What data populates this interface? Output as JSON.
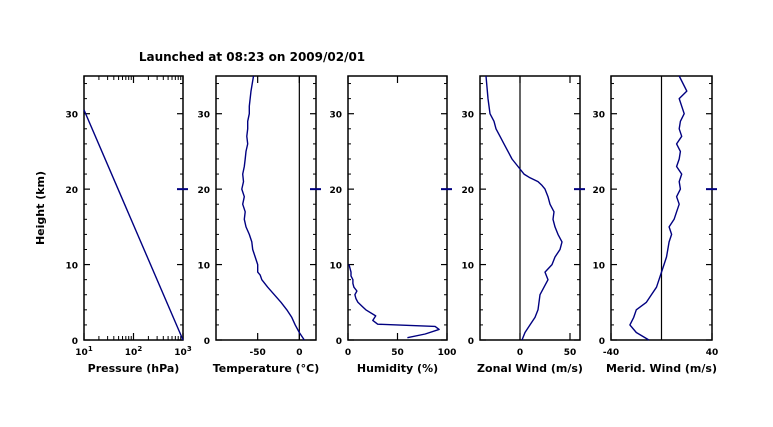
{
  "title": "Launched at 08:23 on 2009/02/01",
  "colors": {
    "frame": "#000000",
    "profile": "#000080",
    "tick": "#000000",
    "bg": "#ffffff"
  },
  "shared_ylabel": "Height (km)",
  "chart_data": [
    {
      "type": "line",
      "xlabel": "Pressure (hPa)",
      "ylabel": "Height (km)",
      "xscale": "log",
      "xlim": [
        10,
        1000
      ],
      "ylim": [
        0,
        35
      ],
      "xticks": [
        {
          "v": 10,
          "base": "10",
          "exp": "1"
        },
        {
          "v": 100,
          "base": "10",
          "exp": "2"
        },
        {
          "v": 1000,
          "base": "10",
          "exp": "3"
        }
      ],
      "yticks": [
        0,
        10,
        20,
        30
      ],
      "zero_line": null,
      "series": [
        {
          "x": [
            1000,
            10
          ],
          "y": [
            0,
            30.5
          ]
        }
      ]
    },
    {
      "type": "line",
      "xlabel": "Temperature (°C)",
      "xlim": [
        -100,
        20
      ],
      "ylim": [
        0,
        35
      ],
      "xticks": [
        -50,
        0
      ],
      "yticks": [
        0,
        10,
        20,
        30
      ],
      "zero_line": 0,
      "series": [
        {
          "x": [
            6,
            0,
            -5,
            -9,
            -15,
            -22,
            -30,
            -38,
            -45,
            -47,
            -50,
            -50,
            -53,
            -56,
            -57,
            -60,
            -64,
            -66,
            -65,
            -68,
            -66,
            -69,
            -67,
            -68,
            -66,
            -65,
            -64,
            -62,
            -63,
            -62,
            -62,
            -60,
            -60,
            -58,
            -55
          ],
          "y": [
            0,
            1,
            2,
            3,
            4,
            5,
            6,
            7,
            8,
            8.6,
            9,
            10,
            11,
            12,
            13,
            14,
            15,
            16,
            17,
            18,
            19,
            20,
            21,
            22,
            23,
            24,
            25,
            26,
            27,
            28,
            29,
            30,
            31,
            33,
            35
          ]
        }
      ]
    },
    {
      "type": "line",
      "xlabel": "Humidity (%)",
      "xlim": [
        0,
        100
      ],
      "ylim": [
        0,
        35
      ],
      "xticks": [
        0,
        50,
        100
      ],
      "yticks": [
        0,
        10,
        20,
        30
      ],
      "zero_line": null,
      "series": [
        {
          "x": [
            60,
            78,
            92,
            88,
            30,
            25,
            28,
            18,
            14,
            10,
            8,
            7,
            9,
            6,
            5,
            5,
            3,
            3,
            2,
            1
          ],
          "y": [
            0.3,
            0.8,
            1.4,
            1.8,
            2.1,
            2.6,
            3.2,
            4.0,
            4.5,
            5.0,
            5.5,
            6.0,
            6.5,
            7.0,
            7.5,
            8.0,
            8.5,
            9.0,
            9.5,
            10.0
          ]
        }
      ]
    },
    {
      "type": "line",
      "xlabel": "Zonal Wind (m/s)",
      "xlim": [
        -40,
        60
      ],
      "ylim": [
        0,
        35
      ],
      "xticks": [
        0,
        50
      ],
      "yticks": [
        0,
        10,
        20,
        30
      ],
      "zero_line": 0,
      "series": [
        {
          "x": [
            2,
            5,
            10,
            15,
            18,
            19,
            20,
            24,
            28,
            25,
            32,
            35,
            40,
            42,
            38,
            35,
            33,
            34,
            30,
            28,
            25,
            22,
            18,
            10,
            4,
            -2,
            -8,
            -12,
            -16,
            -20,
            -24,
            -26,
            -30,
            -32,
            -34
          ],
          "y": [
            0,
            1,
            2,
            3,
            4,
            5,
            6,
            7,
            8,
            9,
            10,
            11,
            12,
            13,
            14,
            15,
            16,
            17,
            18,
            19,
            20,
            20.5,
            21,
            21.5,
            22,
            23,
            24,
            25,
            26,
            27,
            28,
            29,
            30,
            32,
            35
          ]
        }
      ]
    },
    {
      "type": "line",
      "xlabel": "Merid. Wind (m/s)",
      "xlim": [
        -40,
        40
      ],
      "ylim": [
        0,
        35
      ],
      "xticks": [
        -40,
        40
      ],
      "yticks": [
        0,
        10,
        20,
        30
      ],
      "zero_line": 0,
      "series": [
        {
          "x": [
            -10,
            -20,
            -25,
            -22,
            -20,
            -12,
            -8,
            -4,
            -2,
            0,
            2,
            4,
            5,
            6,
            8,
            6,
            10,
            12,
            14,
            12,
            15,
            14,
            16,
            12,
            14,
            15,
            12,
            16,
            14,
            15,
            18,
            16,
            14,
            20,
            14
          ],
          "y": [
            0,
            1,
            2,
            3,
            4,
            5,
            6,
            7,
            8,
            9,
            10,
            11,
            12,
            13,
            14,
            15,
            16,
            17,
            18,
            19,
            20,
            21,
            22,
            23,
            24,
            25,
            26,
            27,
            28,
            29,
            30,
            31,
            32,
            33,
            35
          ]
        }
      ]
    }
  ]
}
